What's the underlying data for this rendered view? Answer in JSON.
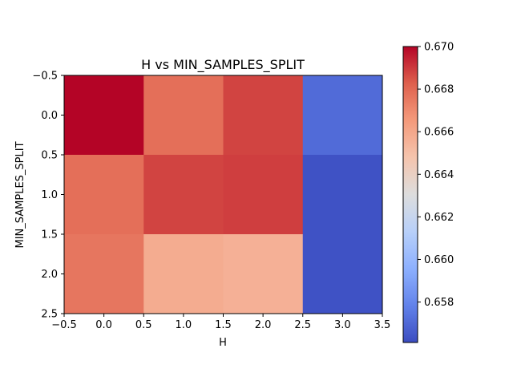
{
  "chart_data": {
    "type": "heatmap",
    "title": "H vs MIN_SAMPLES_SPLIT",
    "xlabel": "H",
    "ylabel": "MIN_SAMPLES_SPLIT",
    "xlim": [
      -0.5,
      3.5
    ],
    "ylim": [
      2.5,
      -0.5
    ],
    "x_ticks": [
      "−0.5",
      "0.0",
      "0.5",
      "1.0",
      "1.5",
      "2.0",
      "2.5",
      "3.0",
      "3.5"
    ],
    "y_ticks": [
      "−0.5",
      "0.0",
      "0.5",
      "1.0",
      "1.5",
      "2.0",
      "2.5"
    ],
    "values": [
      [
        0.67,
        0.6678,
        0.6688,
        0.6571
      ],
      [
        0.6678,
        0.6688,
        0.6689,
        0.6563
      ],
      [
        0.6676,
        0.6658,
        0.6656,
        0.6563
      ]
    ],
    "colormap": "coolwarm",
    "colorbar": {
      "min": 0.6561,
      "max": 0.67,
      "ticks": [
        "0.658",
        "0.660",
        "0.662",
        "0.664",
        "0.666",
        "0.668",
        "0.670"
      ]
    },
    "grid": false
  }
}
